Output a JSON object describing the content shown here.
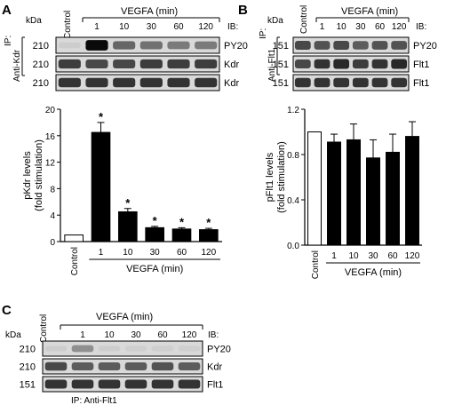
{
  "panels": {
    "A": {
      "letter": "A",
      "kda_label": "kDa",
      "treatment_label": "VEGFA (min)",
      "ib_label": "IB:",
      "control_label": "Control",
      "time_points": [
        "1",
        "10",
        "30",
        "60",
        "120"
      ],
      "ip_label": "IP:",
      "ip_antibody": "Anti-Kdr",
      "blots": [
        {
          "mw": "210",
          "ib": "PY20",
          "intensities": [
            0.05,
            1.0,
            0.55,
            0.5,
            0.45,
            0.45
          ]
        },
        {
          "mw": "210",
          "ib": "Kdr",
          "intensities": [
            0.75,
            0.7,
            0.7,
            0.75,
            0.75,
            0.75
          ]
        },
        {
          "mw": "210",
          "ib": "Kdr",
          "intensities": [
            0.8,
            0.8,
            0.8,
            0.8,
            0.8,
            0.8
          ]
        }
      ]
    },
    "B": {
      "letter": "B",
      "kda_label": "kDa",
      "treatment_label": "VEGFA (min)",
      "ib_label": "IB:",
      "control_label": "Control",
      "time_points": [
        "1",
        "10",
        "30",
        "60",
        "120"
      ],
      "ip_label": "IP:",
      "ip_antibody": "Anti-Flt1",
      "blots": [
        {
          "mw": "151",
          "ib": "PY20",
          "intensities": [
            0.7,
            0.65,
            0.7,
            0.6,
            0.65,
            0.65
          ]
        },
        {
          "mw": "151",
          "ib": "Flt1",
          "intensities": [
            0.7,
            0.8,
            0.85,
            0.75,
            0.8,
            0.85
          ]
        },
        {
          "mw": "151",
          "ib": "Flt1",
          "intensities": [
            0.8,
            0.8,
            0.8,
            0.8,
            0.8,
            0.8
          ]
        }
      ]
    },
    "C": {
      "letter": "C",
      "kda_label": "kDa",
      "treatment_label": "VEGFA (min)",
      "ib_label": "IB:",
      "control_label": "Control",
      "time_points": [
        "1",
        "10",
        "30",
        "60",
        "120"
      ],
      "ip_caption": "IP: Anti-Flt1",
      "blots": [
        {
          "mw": "210",
          "ib": "PY20",
          "intensities": [
            0.05,
            0.35,
            0.05,
            0.04,
            0.04,
            0.04
          ]
        },
        {
          "mw": "210",
          "ib": "Kdr",
          "intensities": [
            0.7,
            0.6,
            0.6,
            0.6,
            0.65,
            0.6
          ]
        },
        {
          "mw": "151",
          "ib": "Flt1",
          "intensities": [
            0.8,
            0.8,
            0.8,
            0.8,
            0.8,
            0.8
          ]
        }
      ]
    }
  },
  "chart_data": [
    {
      "type": "bar",
      "panel": "A",
      "categories": [
        "Control",
        "1",
        "10",
        "30",
        "60",
        "120"
      ],
      "values": [
        1,
        16.5,
        4.5,
        2.1,
        1.9,
        1.8
      ],
      "errors": [
        0,
        1.5,
        0.5,
        0.2,
        0.2,
        0.2
      ],
      "significance": [
        "",
        "*",
        "*",
        "*",
        "*",
        "*"
      ],
      "bar_colors": [
        "#ffffff",
        "#000000",
        "#000000",
        "#000000",
        "#000000",
        "#000000"
      ],
      "ylabel": "pKdr levels\n(fold stimulation)",
      "xlabel": "VEGFA (min)",
      "ylim": [
        0,
        20
      ],
      "yticks": [
        "0",
        "4",
        "8",
        "12",
        "16",
        "20"
      ],
      "grid": false
    },
    {
      "type": "bar",
      "panel": "B",
      "categories": [
        "Control",
        "1",
        "10",
        "30",
        "60",
        "120"
      ],
      "values": [
        1.0,
        0.91,
        0.93,
        0.77,
        0.82,
        0.96
      ],
      "errors": [
        0,
        0.07,
        0.14,
        0.16,
        0.16,
        0.13
      ],
      "significance": [
        "",
        "",
        "",
        "",
        "",
        ""
      ],
      "bar_colors": [
        "#ffffff",
        "#000000",
        "#000000",
        "#000000",
        "#000000",
        "#000000"
      ],
      "ylabel": "pFlt1 levels\n(fold stimulation)",
      "xlabel": "VEGFA (min)",
      "ylim": [
        0,
        1.2
      ],
      "yticks": [
        "0.0",
        "0.4",
        "0.8",
        "1.2"
      ],
      "grid": false
    }
  ]
}
